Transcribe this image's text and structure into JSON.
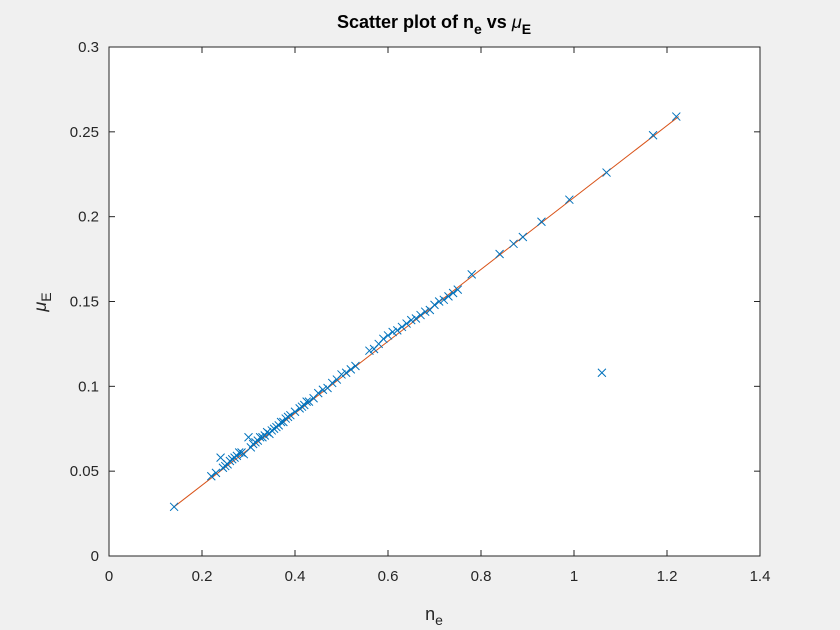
{
  "chart_data": {
    "type": "scatter",
    "title": {
      "prefix": "Scatter plot of n",
      "prefix_sub": "e",
      "middle": " vs ",
      "greek": "μ",
      "greek_sub": "E"
    },
    "xlabel": {
      "main": "n",
      "sub": "e"
    },
    "ylabel": {
      "main": "μ",
      "sub": "E"
    },
    "xlim": [
      0,
      1.4
    ],
    "ylim": [
      0,
      0.3
    ],
    "xticks": [
      0,
      0.2,
      0.4,
      0.6,
      0.8,
      1,
      1.2,
      1.4
    ],
    "xtick_labels": [
      "0",
      "0.2",
      "0.4",
      "0.6",
      "0.8",
      "1",
      "1.2",
      "1.4"
    ],
    "yticks": [
      0,
      0.05,
      0.1,
      0.15,
      0.2,
      0.25,
      0.3
    ],
    "ytick_labels": [
      "0",
      "0.05",
      "0.1",
      "0.15",
      "0.2",
      "0.25",
      "0.3"
    ],
    "grid": false,
    "series": [
      {
        "marker": "x",
        "color": "#0072bd",
        "x": [
          0.14,
          0.22,
          0.23,
          0.24,
          0.245,
          0.25,
          0.255,
          0.26,
          0.265,
          0.27,
          0.275,
          0.28,
          0.285,
          0.29,
          0.3,
          0.305,
          0.31,
          0.315,
          0.32,
          0.325,
          0.33,
          0.335,
          0.34,
          0.345,
          0.35,
          0.355,
          0.36,
          0.365,
          0.37,
          0.375,
          0.38,
          0.385,
          0.39,
          0.4,
          0.41,
          0.415,
          0.42,
          0.425,
          0.43,
          0.44,
          0.45,
          0.46,
          0.47,
          0.48,
          0.49,
          0.5,
          0.51,
          0.52,
          0.53,
          0.56,
          0.57,
          0.58,
          0.59,
          0.6,
          0.61,
          0.62,
          0.63,
          0.64,
          0.65,
          0.66,
          0.67,
          0.68,
          0.69,
          0.7,
          0.71,
          0.72,
          0.73,
          0.74,
          0.75,
          0.78,
          0.84,
          0.87,
          0.89,
          0.93,
          0.99,
          1.06,
          1.07,
          1.17,
          1.22
        ],
        "y": [
          0.029,
          0.047,
          0.049,
          0.058,
          0.052,
          0.053,
          0.054,
          0.056,
          0.057,
          0.058,
          0.059,
          0.061,
          0.061,
          0.06,
          0.07,
          0.064,
          0.066,
          0.067,
          0.068,
          0.07,
          0.07,
          0.071,
          0.073,
          0.072,
          0.074,
          0.075,
          0.076,
          0.077,
          0.079,
          0.079,
          0.081,
          0.082,
          0.083,
          0.085,
          0.087,
          0.088,
          0.089,
          0.091,
          0.091,
          0.093,
          0.096,
          0.098,
          0.099,
          0.102,
          0.104,
          0.107,
          0.108,
          0.11,
          0.112,
          0.121,
          0.122,
          0.125,
          0.128,
          0.13,
          0.132,
          0.133,
          0.135,
          0.137,
          0.139,
          0.14,
          0.142,
          0.144,
          0.145,
          0.148,
          0.15,
          0.151,
          0.153,
          0.155,
          0.157,
          0.166,
          0.178,
          0.184,
          0.188,
          0.197,
          0.21,
          0.108,
          0.226,
          0.248,
          0.259
        ]
      }
    ],
    "fit_line": {
      "color": "#d95319",
      "x": [
        0.14,
        1.225
      ],
      "y": [
        0.029,
        0.259
      ]
    }
  }
}
